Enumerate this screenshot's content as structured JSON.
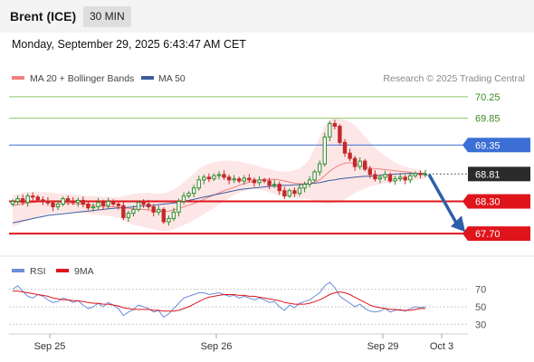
{
  "header": {
    "instrument": "Brent (ICE)",
    "timeframe": "30 MIN",
    "datetime": "Monday, September 29, 2025 6:43:47 AM CET"
  },
  "legend": {
    "ma20": "MA 20 + Bollinger Bands",
    "ma50": "MA 50",
    "credit": "Research © 2025 Trading Central",
    "rsi": "RSI",
    "rsi_ma": "9MA"
  },
  "colors": {
    "candle_up": "#2e8b2e",
    "candle_down": "#c62828",
    "ma20": "#f08080",
    "ma50": "#3f5b9e",
    "bollinger_fill": "#fde2e2",
    "resistance_green": "#8dc76a",
    "pivot_blue": "#3b6fd6",
    "support_red": "#e0151b",
    "arrow": "#2f5ea8",
    "rsi_line": "#6a8ed8",
    "rsi_ma_line": "#e0151b"
  },
  "chart_data": [
    {
      "type": "candlestick",
      "title": "",
      "ylim": [
        67.5,
        70.45
      ],
      "x_ticks": [
        "Sep 25",
        "Sep 26",
        "Sep 29",
        "Oct 3"
      ],
      "current_price": "68.81",
      "levels": [
        {
          "value": "70.25",
          "kind": "resistance-green"
        },
        {
          "value": "69.85",
          "kind": "resistance-green"
        },
        {
          "value": "69.35",
          "kind": "pivot-blue"
        },
        {
          "value": "68.30",
          "kind": "support-red"
        },
        {
          "value": "67.70",
          "kind": "support-red"
        }
      ],
      "forecast_arrow": {
        "from": 68.8,
        "to": 67.8
      },
      "closes": [
        68.3,
        68.35,
        68.28,
        68.4,
        68.38,
        68.33,
        68.3,
        68.27,
        68.2,
        68.25,
        68.35,
        68.3,
        68.28,
        68.32,
        68.25,
        68.18,
        68.2,
        68.28,
        68.22,
        68.3,
        68.25,
        68.22,
        68.0,
        68.08,
        68.15,
        68.28,
        68.25,
        68.2,
        68.1,
        68.15,
        67.92,
        67.98,
        68.1,
        68.3,
        68.4,
        68.45,
        68.55,
        68.7,
        68.75,
        68.72,
        68.78,
        68.8,
        68.75,
        68.7,
        68.72,
        68.68,
        68.73,
        68.7,
        68.65,
        68.7,
        68.68,
        68.6,
        68.62,
        68.5,
        68.4,
        68.5,
        68.45,
        68.55,
        68.62,
        68.7,
        68.85,
        69.0,
        69.5,
        69.75,
        69.7,
        69.4,
        69.2,
        69.1,
        68.95,
        69.05,
        68.9,
        68.8,
        68.72,
        68.75,
        68.8,
        68.68,
        68.72,
        68.75,
        68.7,
        68.78,
        68.82,
        68.8,
        68.81
      ],
      "ma20": [
        68.22,
        68.24,
        68.25,
        68.27,
        68.28,
        68.29,
        68.3,
        68.3,
        68.3,
        68.29,
        68.28,
        68.27,
        68.26,
        68.25,
        68.25,
        68.24,
        68.23,
        68.22,
        68.21,
        68.2,
        68.2,
        68.19,
        68.18,
        68.17,
        68.16,
        68.15,
        68.15,
        68.14,
        68.13,
        68.12,
        68.11,
        68.12,
        68.14,
        68.17,
        68.2,
        68.23,
        68.26,
        68.3,
        68.34,
        68.38,
        68.42,
        68.46,
        68.5,
        68.53,
        68.56,
        68.6,
        68.63,
        68.66,
        68.68,
        68.7,
        68.71,
        68.71,
        68.71,
        68.7,
        68.68,
        68.66,
        68.64,
        68.63,
        68.63,
        68.64,
        68.66,
        68.7,
        68.78,
        68.86,
        68.93,
        68.98,
        69.01,
        69.02,
        69.0,
        68.97,
        68.94,
        68.92,
        68.91,
        68.9,
        68.89,
        68.88,
        68.87,
        68.86,
        68.85,
        68.84,
        68.82,
        68.81,
        68.8
      ],
      "ma50": [
        67.9,
        67.92,
        67.94,
        67.96,
        67.98,
        68.0,
        68.02,
        68.04,
        68.05,
        68.06,
        68.07,
        68.08,
        68.09,
        68.1,
        68.11,
        68.12,
        68.13,
        68.14,
        68.15,
        68.16,
        68.17,
        68.18,
        68.18,
        68.19,
        68.2,
        68.21,
        68.22,
        68.22,
        68.23,
        68.24,
        68.25,
        68.26,
        68.27,
        68.28,
        68.3,
        68.32,
        68.34,
        68.36,
        68.38,
        68.4,
        68.42,
        68.44,
        68.46,
        68.48,
        68.5,
        68.52,
        68.53,
        68.54,
        68.55,
        68.56,
        68.57,
        68.58,
        68.58,
        68.59,
        68.6,
        68.6,
        68.61,
        68.61,
        68.62,
        68.63,
        68.64,
        68.65,
        68.67,
        68.69,
        68.7,
        68.72,
        68.73,
        68.74,
        68.75,
        68.76,
        68.77,
        68.77,
        68.78,
        68.79,
        68.8,
        68.8,
        68.81,
        68.81,
        68.82,
        68.82,
        68.82,
        68.82,
        68.82
      ],
      "bb_upper": [
        68.42,
        68.44,
        68.46,
        68.48,
        68.48,
        68.48,
        68.47,
        68.47,
        68.46,
        68.45,
        68.44,
        68.44,
        68.43,
        68.42,
        68.41,
        68.4,
        68.4,
        68.4,
        68.39,
        68.38,
        68.38,
        68.37,
        68.4,
        68.42,
        68.44,
        68.45,
        68.46,
        68.46,
        68.45,
        68.44,
        68.45,
        68.48,
        68.52,
        68.58,
        68.66,
        68.74,
        68.82,
        68.9,
        68.96,
        69.0,
        69.03,
        69.05,
        69.06,
        69.06,
        69.05,
        69.04,
        69.02,
        69.0,
        68.98,
        68.95,
        68.92,
        68.9,
        68.88,
        68.86,
        68.85,
        68.86,
        68.88,
        68.92,
        68.98,
        69.1,
        69.3,
        69.5,
        69.7,
        69.82,
        69.85,
        69.84,
        69.82,
        69.78,
        69.72,
        69.62,
        69.5,
        69.4,
        69.3,
        69.22,
        69.15,
        69.08,
        69.02,
        68.98,
        68.95,
        68.92,
        68.9,
        68.88,
        68.86
      ],
      "bb_lower": [
        67.82,
        67.86,
        67.9,
        67.94,
        67.98,
        68.02,
        68.04,
        68.06,
        68.08,
        68.09,
        68.1,
        68.1,
        68.1,
        68.09,
        68.08,
        68.07,
        68.06,
        68.05,
        68.04,
        68.03,
        68.02,
        68.0,
        67.95,
        67.9,
        67.86,
        67.84,
        67.82,
        67.8,
        67.78,
        67.76,
        67.75,
        67.76,
        67.78,
        67.82,
        67.86,
        67.9,
        67.95,
        68.0,
        68.06,
        68.12,
        68.18,
        68.24,
        68.3,
        68.36,
        68.42,
        68.46,
        68.5,
        68.53,
        68.54,
        68.52,
        68.5,
        68.47,
        68.44,
        68.42,
        68.4,
        68.38,
        68.36,
        68.35,
        68.35,
        68.34,
        68.3,
        68.28,
        68.26,
        68.25,
        68.27,
        68.3,
        68.34,
        68.4,
        68.46,
        68.5,
        68.54,
        68.58,
        68.6,
        68.62,
        68.64,
        68.66,
        68.67,
        68.68,
        68.69,
        68.7,
        68.7,
        68.71,
        68.72
      ]
    },
    {
      "type": "line",
      "title": "",
      "ylim": [
        20,
        80
      ],
      "y_ticks": [
        "70",
        "50",
        "30"
      ],
      "rsi": [
        70,
        74,
        68,
        62,
        60,
        64,
        62,
        58,
        55,
        56,
        60,
        58,
        55,
        57,
        52,
        48,
        50,
        54,
        50,
        55,
        52,
        48,
        40,
        44,
        47,
        52,
        50,
        48,
        44,
        46,
        38,
        42,
        48,
        54,
        60,
        62,
        64,
        66,
        66,
        64,
        65,
        66,
        64,
        62,
        63,
        60,
        62,
        60,
        58,
        60,
        58,
        55,
        56,
        50,
        46,
        52,
        49,
        54,
        56,
        58,
        62,
        66,
        74,
        78,
        72,
        62,
        58,
        54,
        50,
        53,
        48,
        45,
        44,
        45,
        48,
        44,
        46,
        47,
        45,
        48,
        50,
        49,
        50
      ],
      "rsi_ma": [
        68,
        68,
        67,
        66,
        65,
        64,
        63,
        62,
        60,
        59,
        58,
        58,
        57,
        57,
        56,
        55,
        54,
        54,
        53,
        53,
        52,
        51,
        49,
        48,
        47,
        47,
        47,
        47,
        46,
        46,
        45,
        45,
        45,
        46,
        48,
        50,
        53,
        56,
        59,
        61,
        62,
        63,
        64,
        64,
        64,
        63,
        63,
        62,
        62,
        61,
        60,
        59,
        58,
        57,
        55,
        54,
        53,
        53,
        53,
        54,
        56,
        58,
        61,
        64,
        66,
        67,
        66,
        64,
        61,
        58,
        55,
        52,
        50,
        49,
        48,
        47,
        47,
        46,
        46,
        46,
        47,
        48,
        48
      ]
    }
  ]
}
